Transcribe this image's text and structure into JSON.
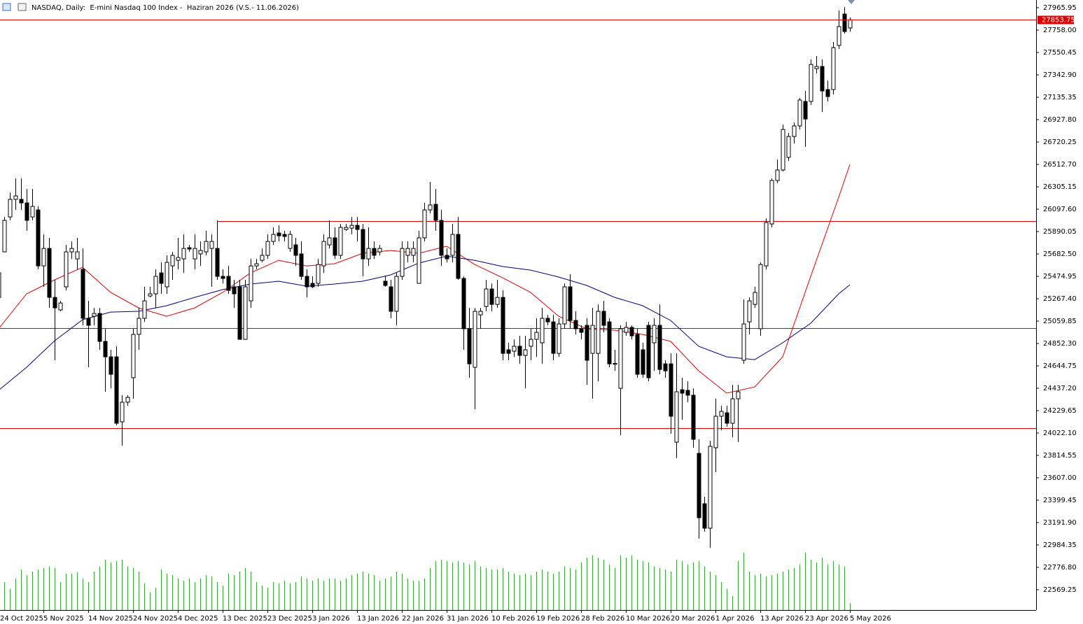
{
  "chart_data": {
    "type": "candlestick",
    "title": "NASDAQ, Daily:  E-mini Nasdaq 100 Index -  Haziran 2026 (V.S.- 11.06.2026)",
    "categories": [
      "24 Oct 2025",
      null,
      null,
      null,
      null,
      null,
      null,
      null,
      "5 Nov 2025",
      null,
      null,
      null,
      null,
      null,
      null,
      null,
      "14 Nov 2025",
      null,
      null,
      null,
      null,
      null,
      null,
      null,
      "24 Nov 2025",
      null,
      null,
      null,
      null,
      null,
      null,
      null,
      "4 Dec 2025",
      null,
      null,
      null,
      null,
      null,
      null,
      null,
      "13 Dec 2025",
      null,
      null,
      null,
      null,
      null,
      null,
      null,
      "23 Dec 2025",
      null,
      null,
      null,
      null,
      null,
      null,
      null,
      "3 Jan 2026",
      null,
      null,
      null,
      null,
      null,
      null,
      null,
      "13 Jan 2026",
      null,
      null,
      null,
      null,
      null,
      null,
      null,
      "22 Jan 2026",
      null,
      null,
      null,
      null,
      null,
      null,
      null,
      "31 Jan 2026",
      null,
      null,
      null,
      null,
      null,
      null,
      null,
      "10 Feb 2026",
      null,
      null,
      null,
      null,
      null,
      null,
      null,
      "19 Feb 2026",
      null,
      null,
      null,
      null,
      null,
      null,
      null,
      "28 Feb 2026",
      null,
      null,
      null,
      null,
      null,
      null,
      null,
      "10 Mar 2026",
      null,
      null,
      null,
      null,
      null,
      null,
      null,
      "20 Mar 2026",
      null,
      null,
      null,
      null,
      null,
      null,
      null,
      "1 Apr 2026",
      null,
      null,
      null,
      null,
      null,
      null,
      null,
      "13 Apr 2026",
      null,
      null,
      null,
      null,
      null,
      null,
      null,
      "23 Apr 2026",
      null,
      null,
      null,
      null,
      null,
      null,
      null,
      "5 May 2026"
    ],
    "open": [
      25280,
      25702,
      26026,
      26189,
      26189,
      26156,
      26026,
      26091,
      25572,
      25734,
      25280,
      25164,
      25378,
      25702,
      25637,
      25540,
      25086,
      25105,
      25131,
      24872,
      24729,
      24729,
      24126,
      24308,
      24535,
      24937,
      25086,
      25293,
      25313,
      25507,
      25378,
      25572,
      25624,
      25637,
      25741,
      25637,
      25683,
      25702,
      25734,
      25734,
      25475,
      25475,
      25378,
      25378,
      24891,
      25248,
      25572,
      25624,
      25670,
      25799,
      25877,
      25864,
      25734,
      25767,
      25683,
      25475,
      25410,
      25410,
      25572,
      25767,
      25832,
      25670,
      25910,
      25922,
      25948,
      25910,
      25637,
      25734,
      25702,
      25430,
      25378,
      25151,
      25475,
      25670,
      25670,
      25410,
      25832,
      26091,
      26143,
      25994,
      25670,
      25670,
      25864,
      25456,
      24989,
      24632,
      25118,
      25196,
      25358,
      25215,
      25280,
      24794,
      24781,
      24827,
      24742,
      24827,
      24891,
      24859,
      25086,
      25053,
      24761,
      25034,
      25378,
      25066,
      24989,
      25021,
      24761,
      24761,
      25151,
      25053,
      24660,
      24437,
      24956,
      25002,
      24937,
      24794,
      25021,
      24859,
      25021,
      24664,
      24664,
      23938,
      24424,
      24418,
      24373,
      23834,
      23367,
      23140,
      23886,
      24178,
      24210,
      24113,
      24340,
      24697,
      25053,
      25215,
      24989,
      25572,
      25961,
      26364,
      26461,
      26578,
      26772,
      26870,
      27097,
      27097,
      27401,
      27421,
      27207,
      27207,
      27616,
      27907,
      27778
    ],
    "high": [
      25540,
      26026,
      26253,
      26383,
      26383,
      26286,
      26286,
      26124,
      25864,
      25832,
      25443,
      25248,
      25767,
      25799,
      25832,
      25734,
      25248,
      25183,
      25183,
      24989,
      24794,
      24827,
      24373,
      24373,
      24989,
      25183,
      25378,
      25378,
      25540,
      25605,
      25670,
      25702,
      25832,
      25864,
      25767,
      25864,
      25799,
      25897,
      25864,
      25994,
      25540,
      25572,
      25443,
      25443,
      25443,
      25637,
      25637,
      25734,
      25864,
      25929,
      25948,
      25897,
      25897,
      25832,
      25799,
      25540,
      25475,
      25637,
      25864,
      25994,
      25929,
      25961,
      25961,
      26026,
      26026,
      25961,
      25929,
      25799,
      25767,
      25475,
      25443,
      25507,
      25799,
      25799,
      25799,
      25897,
      26156,
      26351,
      26286,
      26091,
      25734,
      25961,
      26026,
      25475,
      25183,
      25183,
      25183,
      25443,
      25410,
      25443,
      25345,
      24859,
      24891,
      24924,
      24924,
      24989,
      25086,
      25183,
      25118,
      25118,
      25086,
      25410,
      25495,
      25151,
      25021,
      25086,
      25183,
      25215,
      25248,
      25086,
      24794,
      25021,
      25053,
      25021,
      24989,
      24859,
      25053,
      25086,
      25215,
      24697,
      24761,
      24761,
      24535,
      24502,
      24437,
      23964,
      23432,
      23951,
      24340,
      24275,
      24275,
      24470,
      24470,
      25261,
      25280,
      25378,
      25605,
      26013,
      26383,
      26558,
      26882,
      26805,
      26902,
      27129,
      27194,
      27486,
      27518,
      27486,
      27291,
      27648,
      27940,
      27972,
      27875
    ],
    "low": [
      25248,
      25702,
      25994,
      26091,
      26091,
      25897,
      25994,
      25540,
      25378,
      25183,
      24697,
      25151,
      25345,
      25637,
      25540,
      25021,
      24632,
      25021,
      24794,
      24405,
      24437,
      24094,
      23905,
      24275,
      24340,
      24794,
      25053,
      25280,
      25183,
      25313,
      25313,
      25443,
      25540,
      25507,
      25702,
      25540,
      25572,
      25670,
      25378,
      25443,
      25410,
      25313,
      25183,
      24891,
      24891,
      25183,
      25540,
      25605,
      25637,
      25767,
      25799,
      25799,
      25702,
      25572,
      25443,
      25280,
      25365,
      25378,
      25507,
      25734,
      25637,
      25637,
      25897,
      25864,
      25799,
      25475,
      25572,
      25637,
      25670,
      25378,
      25086,
      25021,
      25443,
      25605,
      25605,
      25410,
      25799,
      26059,
      25897,
      25572,
      25605,
      25605,
      25443,
      24794,
      24535,
      24243,
      24989,
      25151,
      25151,
      25183,
      24697,
      24697,
      24729,
      24664,
      24437,
      24697,
      24729,
      24664,
      25021,
      24697,
      24729,
      24989,
      24989,
      24937,
      24891,
      24470,
      24340,
      24502,
      24956,
      24632,
      24599,
      24003,
      24924,
      24891,
      24535,
      24535,
      24502,
      24599,
      24567,
      24535,
      24016,
      23789,
      24146,
      24308,
      23886,
      23043,
      23107,
      22958,
      23659,
      24048,
      24081,
      23983,
      23938,
      24664,
      24937,
      25183,
      24924,
      25540,
      25929,
      26338,
      26448,
      26545,
      26707,
      26837,
      26675,
      27064,
      27356,
      26999,
      27097,
      27161,
      27583,
      27726,
      27745
    ],
    "close": [
      25507,
      25994,
      26189,
      26221,
      26156,
      25994,
      26124,
      25572,
      25734,
      25280,
      25183,
      25228,
      25702,
      25734,
      25702,
      25086,
      25021,
      25131,
      24872,
      24729,
      24567,
      24113,
      24308,
      24353,
      24937,
      25086,
      25248,
      25313,
      25475,
      25410,
      25605,
      25670,
      25650,
      25734,
      25728,
      25734,
      25715,
      25799,
      25799,
      25475,
      25456,
      25345,
      25313,
      24891,
      25378,
      25572,
      25592,
      25670,
      25799,
      25864,
      25851,
      25845,
      25864,
      25670,
      25475,
      25378,
      25378,
      25585,
      25799,
      25832,
      25670,
      25929,
      25929,
      25948,
      25910,
      25637,
      25734,
      25670,
      25734,
      25391,
      25151,
      25475,
      25734,
      25734,
      25734,
      25832,
      26091,
      26137,
      25994,
      25670,
      25637,
      25864,
      25456,
      24989,
      24664,
      25151,
      25151,
      25358,
      25215,
      25280,
      24761,
      24761,
      24827,
      24742,
      24794,
      24891,
      24956,
      25086,
      25053,
      24761,
      25034,
      25378,
      25066,
      24989,
      24956,
      24697,
      25021,
      25151,
      25021,
      24664,
      24668,
      24989,
      25002,
      24924,
      24567,
      24567,
      24535,
      25021,
      24612,
      24599,
      24178,
      24405,
      24392,
      24373,
      23964,
      23237,
      23140,
      23899,
      24178,
      24223,
      24113,
      24340,
      24405,
      25034,
      25248,
      25326,
      25585,
      25974,
      26364,
      26461,
      26837,
      26772,
      26870,
      27110,
      26934,
      27440,
      27421,
      27194,
      27142,
      27596,
      27791,
      27745,
      27853.75
    ],
    "volume": [
      40,
      40,
      30,
      45,
      58,
      50,
      55,
      58,
      60,
      62,
      60,
      40,
      52,
      52,
      54,
      45,
      40,
      55,
      62,
      72,
      68,
      70,
      72,
      62,
      60,
      55,
      38,
      25,
      32,
      58,
      52,
      50,
      45,
      42,
      45,
      40,
      45,
      50,
      48,
      40,
      35,
      52,
      50,
      55,
      60,
      55,
      40,
      35,
      32,
      40,
      38,
      42,
      38,
      40,
      48,
      45,
      42,
      45,
      42,
      45,
      45,
      42,
      45,
      50,
      52,
      55,
      52,
      50,
      42,
      45,
      48,
      55,
      52,
      45,
      42,
      42,
      45,
      60,
      70,
      72,
      70,
      68,
      70,
      68,
      65,
      70,
      62,
      60,
      58,
      58,
      60,
      55,
      52,
      50,
      52,
      50,
      55,
      58,
      55,
      52,
      55,
      62,
      60,
      58,
      68,
      75,
      78,
      75,
      72,
      65,
      60,
      78,
      75,
      78,
      72,
      70,
      68,
      62,
      60,
      58,
      55,
      72,
      70,
      65,
      68,
      70,
      62,
      55,
      50,
      40,
      30,
      20,
      70,
      82,
      55,
      50,
      52,
      48,
      50,
      52,
      55,
      58,
      60,
      65,
      82,
      72,
      68,
      75,
      65,
      70,
      65,
      62,
      10
    ],
    "volume_color": "#3aa33a",
    "up_color": "#ffffff",
    "down_color": "#000000",
    "ma": [
      {
        "color": "#e00000",
        "x": [
          0,
          5,
          10,
          15,
          20,
          25,
          30,
          35,
          40,
          45,
          50,
          55,
          60,
          65,
          70,
          75,
          80,
          85,
          90,
          95,
          100,
          105,
          110,
          115,
          120,
          125,
          130,
          135,
          140,
          145,
          150,
          152
        ],
        "values": [
          24989,
          25313,
          25443,
          25559,
          25326,
          25183,
          25105,
          25183,
          25326,
          25507,
          25624,
          25572,
          25592,
          25689,
          25715,
          25689,
          25754,
          25585,
          25462,
          25326,
          25105,
          24989,
          24976,
          24937,
          24872,
          24599,
          24392,
          24450,
          24729,
          25475,
          26208,
          26513
        ]
      },
      {
        "color": "#000080",
        "x": [
          0,
          5,
          10,
          15,
          20,
          25,
          30,
          35,
          40,
          45,
          50,
          55,
          60,
          65,
          70,
          75,
          80,
          85,
          90,
          95,
          100,
          105,
          110,
          115,
          120,
          125,
          130,
          135,
          140,
          145,
          150,
          152
        ],
        "values": [
          24418,
          24632,
          24878,
          25073,
          25144,
          25151,
          25203,
          25280,
          25352,
          25404,
          25430,
          25384,
          25404,
          25430,
          25488,
          25598,
          25663,
          25624,
          25566,
          25533,
          25469,
          25391,
          25280,
          25203,
          25066,
          24827,
          24729,
          24703,
          24859,
          25040,
          25313,
          25397
        ]
      }
    ],
    "levels": [
      {
        "value": 25988,
        "from": 39,
        "color": "#e00000"
      },
      {
        "value": 24995,
        "color": "#e00000"
      },
      {
        "value": 24068,
        "color": "#e00000"
      }
    ],
    "last_price": 27853.75,
    "last_price_color": "#e00000",
    "ylim": [
      22381.5,
      28037.3
    ],
    "yticks": [
      27965.95,
      {
        "value": 27758,
        "label": "27758.00"
      },
      27550.45,
      {
        "value": 27342.9,
        "label": "27342.90"
      },
      27135.35,
      {
        "value": 26927.8,
        "label": "26927.80"
      },
      26720.25,
      {
        "value": 26512.7,
        "label": "26512.70"
      },
      26305.15,
      {
        "value": 26097.6,
        "label": "26097.60"
      },
      25890.05,
      {
        "value": 25682.5,
        "label": "25682.50"
      },
      25474.95,
      {
        "value": 25267.4,
        "label": "25267.40"
      },
      25059.85,
      {
        "value": 24852.3,
        "label": "24852.30"
      },
      24644.75,
      {
        "value": 24437.2,
        "label": "24437.20"
      },
      24229.65,
      {
        "value": 24022.1,
        "label": "24022.10"
      },
      23814.55,
      {
        "value": 23607,
        "label": "23607.00"
      },
      23399.45,
      {
        "value": 23191.9,
        "label": "23191.90"
      },
      22984.35,
      {
        "value": 22776.8,
        "label": "22776.80"
      },
      22569.25
    ]
  }
}
